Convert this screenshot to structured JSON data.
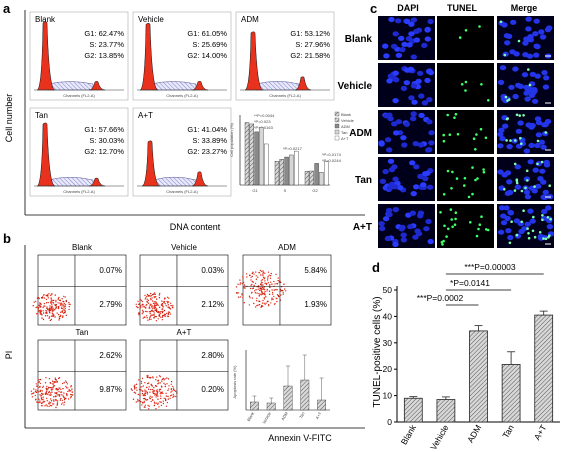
{
  "panels": {
    "a": "a",
    "b": "b",
    "c": "c",
    "d": "d"
  },
  "cell_cycle": {
    "y_label": "Cell number",
    "x_label": "DNA content",
    "axis_caption": "Channels (FL2-A)",
    "groups": [
      {
        "name": "Blank",
        "lines": [
          "G1: 62.47%",
          "S: 23.77%",
          "G2: 13.85%"
        ],
        "g1": 62.47,
        "s": 23.77,
        "g2": 13.85
      },
      {
        "name": "Vehicle",
        "lines": [
          "G1: 61.05%",
          "S: 25.69%",
          "G2: 14.00%"
        ],
        "g1": 61.05,
        "s": 25.69,
        "g2": 14.0
      },
      {
        "name": "ADM",
        "lines": [
          "G1: 53.12%",
          "S: 27.96%",
          "G2: 21.58%"
        ],
        "g1": 53.12,
        "s": 27.96,
        "g2": 21.58
      },
      {
        "name": "Tan",
        "lines": [
          "G1: 57.66%",
          "S: 30.03%",
          "G2: 12.70%"
        ],
        "g1": 57.66,
        "s": 30.03,
        "g2": 12.7
      },
      {
        "name": "A+T",
        "lines": [
          "G1: 41.04%",
          "S: 33.89%",
          "G2: 23.27%"
        ],
        "g1": 41.04,
        "s": 33.89,
        "g2": 23.27
      }
    ],
    "bar_chart": {
      "ylabel": "Cell population (%)",
      "legend": [
        "Blank",
        "Vehicle",
        "ADM",
        "Tan",
        "A+T"
      ],
      "categories": [
        "G1",
        "S",
        "G2"
      ],
      "annotations": [
        "**P=0.0044",
        "*P=0.023",
        "*P=0.0163",
        "*P=0.0217",
        "*P=0.0174",
        "*P=0.0244"
      ]
    }
  },
  "apoptosis": {
    "y_label": "PI",
    "x_label": "Annexin V-FITC",
    "groups": [
      {
        "name": "Blank",
        "ur": "0.07%",
        "lr": "2.79%"
      },
      {
        "name": "Vehicle",
        "ur": "0.03%",
        "lr": "2.12%"
      },
      {
        "name": "ADM",
        "ur": "5.84%",
        "lr": "1.93%"
      },
      {
        "name": "Tan",
        "ur": "2.62%",
        "lr": "9.87%"
      },
      {
        "name": "A+T",
        "ur": "2.80%",
        "lr": "0.20%"
      }
    ],
    "bar_chart": {
      "ylabel": "Apoptosis rate (%)",
      "categories": [
        "Blank",
        "Vehicle",
        "ADM",
        "Tan",
        "A+T"
      ]
    }
  },
  "tunel_images": {
    "columns": [
      "DAPI",
      "TUNEL",
      "Merge"
    ],
    "rows": [
      "Blank",
      "Vehicle",
      "ADM",
      "Tan",
      "A+T"
    ]
  },
  "chart_data": {
    "type": "bar",
    "categories": [
      "Blank",
      "Vehicle",
      "ADM",
      "Tan",
      "A+T"
    ],
    "values": [
      9,
      8.5,
      34.5,
      21.8,
      40.5
    ],
    "errors": [
      0.6,
      1.0,
      2.0,
      4.8,
      1.5
    ],
    "ylabel": "TUNEL-positive cells (%)",
    "ylim": [
      0,
      50
    ],
    "yticks": [
      "0",
      "10",
      "20",
      "30",
      "40",
      "50"
    ],
    "annotations": [
      "***P=0.00003",
      "*P=0.0141",
      "***P=0.0002"
    ]
  }
}
